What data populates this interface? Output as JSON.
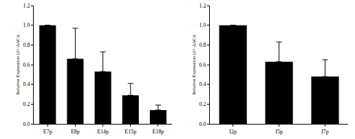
{
  "chart_data": [
    {
      "type": "bar",
      "y_label": "Relative Expression (2^-ΔΔCt)",
      "categories": [
        "E7p",
        "E8p",
        "E14p",
        "E15p",
        "E18p"
      ],
      "values": [
        1.0,
        0.66,
        0.53,
        0.29,
        0.14
      ],
      "errors": [
        null,
        0.31,
        0.2,
        0.12,
        0.05
      ],
      "color": "#000000",
      "ylim": [
        0,
        1.2
      ],
      "yticks": [
        {
          "value": 0,
          "label": "0.0"
        },
        0.2,
        0.4,
        0.6,
        0.8,
        {
          "value": 1,
          "label": "1.0"
        },
        1.2
      ],
      "grid": false
    },
    {
      "type": "bar",
      "y_label": "Relative Expression (2^-ΔΔCt)",
      "categories": [
        "I2p",
        "I5p",
        "I7p"
      ],
      "values": [
        1.0,
        0.63,
        0.48
      ],
      "errors": [
        null,
        0.2,
        0.17
      ],
      "color": "#000000",
      "ylim": [
        0,
        1.2
      ],
      "yticks": [
        {
          "value": 0,
          "label": "0.0"
        },
        0.2,
        0.4,
        0.6,
        0.8,
        {
          "value": 1,
          "label": "1.0"
        },
        1.2
      ],
      "grid": false
    }
  ]
}
